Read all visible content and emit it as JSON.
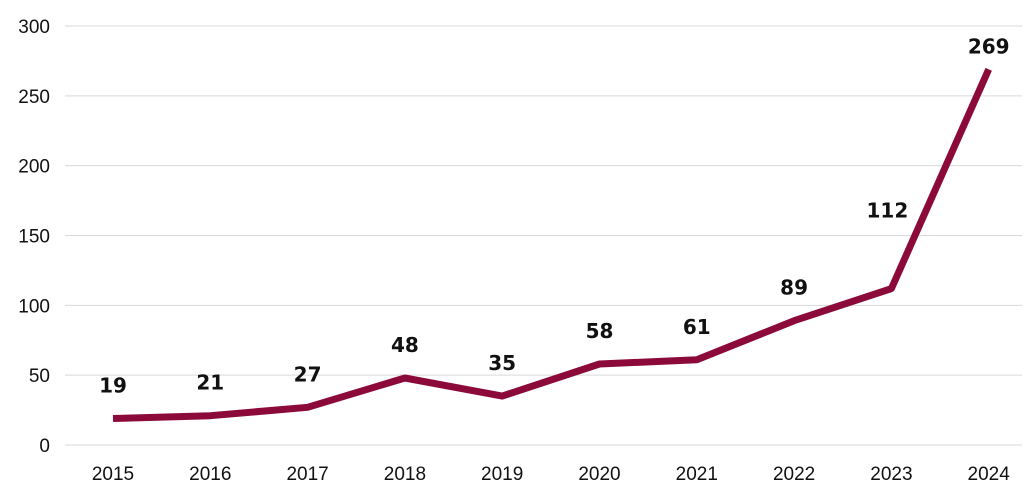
{
  "chart_data": {
    "type": "line",
    "title": "",
    "xlabel": "",
    "ylabel": "",
    "categories": [
      "2015",
      "2016",
      "2017",
      "2018",
      "2019",
      "2020",
      "2021",
      "2022",
      "2023",
      "2024"
    ],
    "series": [
      {
        "values": [
          19,
          21,
          27,
          48,
          35,
          58,
          61,
          89,
          112,
          269
        ]
      }
    ],
    "data_labels": [
      "19",
      "21",
      "27",
      "48",
      "35",
      "58",
      "61",
      "89",
      "112",
      "269"
    ],
    "yticks": [
      "0",
      "50",
      "100",
      "150",
      "200",
      "250",
      "300"
    ],
    "ylim": [
      0,
      300
    ],
    "grid": true,
    "legend": "none",
    "colors": {
      "line": "#8b0a3a",
      "grid": "#d9d9d9",
      "text": "#111111"
    }
  }
}
